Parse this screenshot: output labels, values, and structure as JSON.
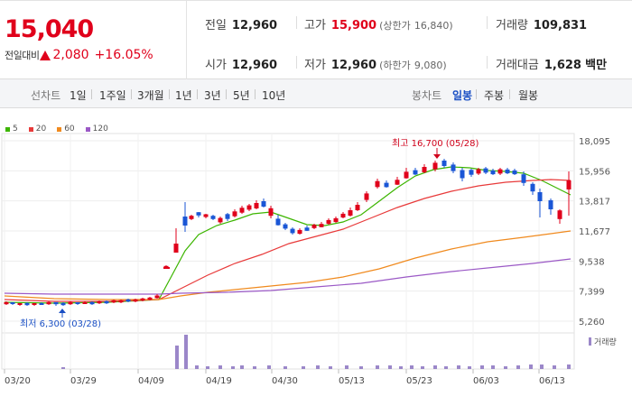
{
  "quote": {
    "price": "15,040",
    "change_label": "전일대비",
    "change_amount": "2,080",
    "change_rate": "+16.05%",
    "prev_close_label": "전일",
    "prev_close": "12,960",
    "high_label": "고가",
    "high": "15,900",
    "upper_limit_label": "(상한가",
    "upper_limit": "16,840)",
    "volume_label": "거래량",
    "volume": "109,831",
    "open_label": "시가",
    "open": "12,960",
    "low_label": "저가",
    "low": "12,960",
    "lower_limit_label": "(하한가",
    "lower_limit": "9,080)",
    "amount_label": "거래대금",
    "amount": "1,628",
    "amount_unit": "백만"
  },
  "tabs": {
    "line_label": "선차트",
    "line_periods": [
      "1일",
      "1주일",
      "3개월",
      "1년",
      "3년",
      "5년",
      "10년"
    ],
    "candle_label": "봉차트",
    "candle_periods": [
      "일봉",
      "주봉",
      "월봉"
    ],
    "candle_active": 0
  },
  "chart_data": {
    "type": "candlestick",
    "ylim": [
      5260,
      18095
    ],
    "y_ticks": [
      "18,095",
      "15,956",
      "13,817",
      "11,677",
      "9,538",
      "7,399",
      "5,260"
    ],
    "x_ticks": [
      "03/20",
      "03/29",
      "04/09",
      "04/19",
      "04/30",
      "05/13",
      "05/23",
      "06/03",
      "06/13"
    ],
    "legend": [
      {
        "name": "5",
        "color": "#3cb500"
      },
      {
        "name": "20",
        "color": "#e83a3a"
      },
      {
        "name": "60",
        "color": "#f08a1e"
      },
      {
        "name": "120",
        "color": "#9b59c6"
      }
    ],
    "annotation_high": "최고 16,700 (05/28)",
    "annotation_low": "최저 6,300 (03/28)",
    "volume_legend": "거래량",
    "up_color": "#e0001b",
    "down_color": "#1a56d6"
  }
}
